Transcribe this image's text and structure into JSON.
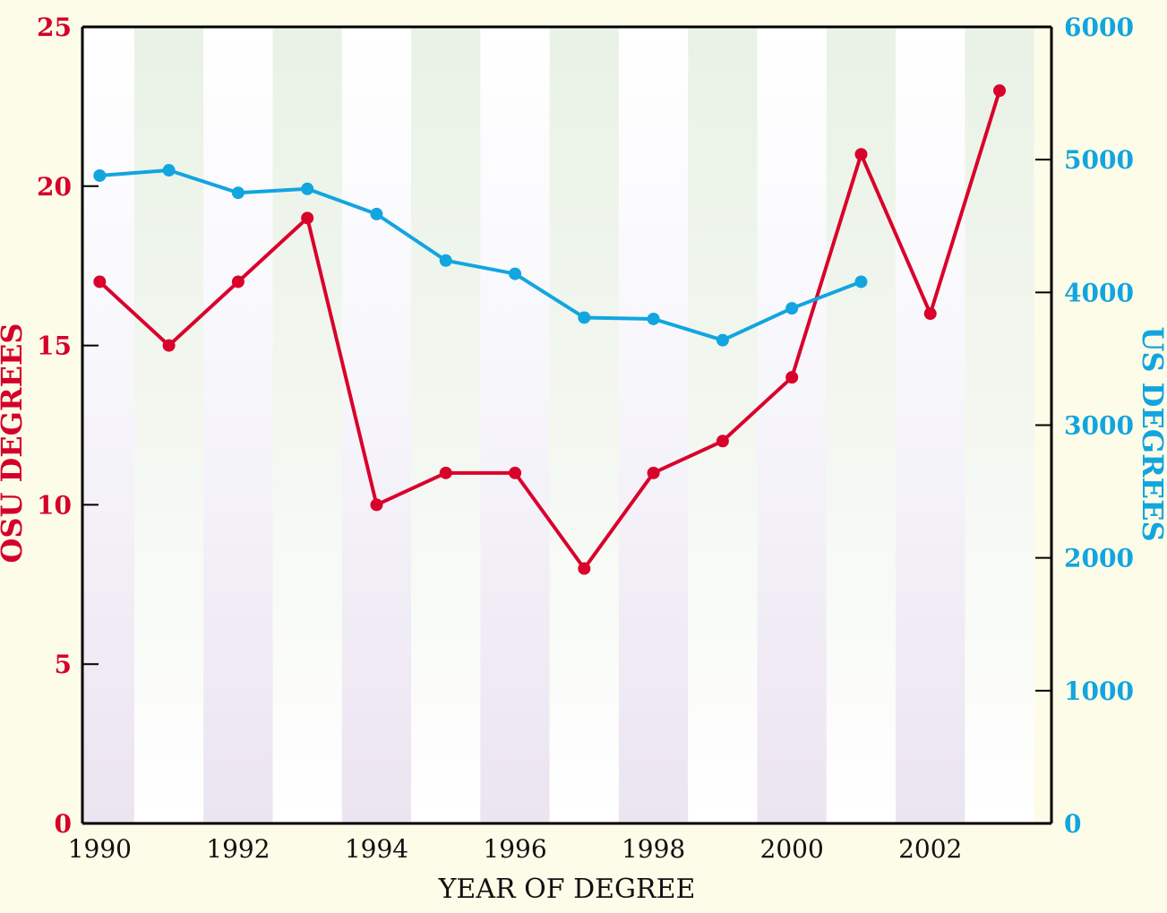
{
  "chart_data": {
    "type": "line",
    "title": "",
    "xlabel": "YEAR OF DEGREE",
    "ylabel": "OSU DEGREES",
    "y2label": "US DEGREES",
    "xlim": [
      1989.75,
      2003.75
    ],
    "ylim": [
      0,
      25
    ],
    "y2lim": [
      0,
      6000
    ],
    "x_ticks": [
      1990,
      1992,
      1994,
      1996,
      1998,
      2000,
      2002
    ],
    "y_ticks": [
      0,
      5,
      10,
      15,
      20,
      25
    ],
    "y2_ticks": [
      0,
      1000,
      2000,
      3000,
      4000,
      5000,
      6000
    ],
    "series": [
      {
        "name": "OSU DEGREES",
        "axis": "left",
        "color": "#d9022b",
        "x": [
          1990,
          1991,
          1992,
          1993,
          1994,
          1995,
          1996,
          1997,
          1998,
          1999,
          2000,
          2001,
          2002,
          2003
        ],
        "values": [
          17,
          15,
          17,
          19,
          10,
          11,
          11,
          8,
          11,
          12,
          14,
          21,
          16,
          23
        ]
      },
      {
        "name": "US DEGREES",
        "axis": "right",
        "color": "#12a5e0",
        "x": [
          1990,
          1991,
          1992,
          1993,
          1994,
          1995,
          1996,
          1997,
          1998,
          1999,
          2000,
          2001
        ],
        "values": [
          4880,
          4920,
          4750,
          4780,
          4590,
          4240,
          4140,
          3810,
          3800,
          3640,
          3880,
          4080
        ]
      }
    ]
  },
  "colors": {
    "page_background": "#fdfce8",
    "band_green": "#eaf3e6",
    "band_purple": "#ece6f0",
    "osu_color": "#d9022b",
    "us_color": "#12a5e0"
  }
}
